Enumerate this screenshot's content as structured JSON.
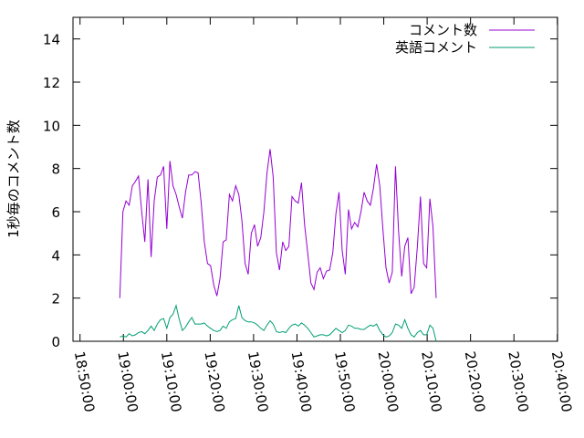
{
  "chart_data": {
    "type": "line",
    "title": "",
    "xlabel": "",
    "ylabel": "1秒毎のコメント数",
    "ylim": [
      0,
      15
    ],
    "y_ticks": [
      "0",
      "2",
      "4",
      "6",
      "8",
      "10",
      "12",
      "14"
    ],
    "x_ticks": [
      "18:50:00",
      "19:00:00",
      "19:10:00",
      "19:20:00",
      "19:30:00",
      "19:40:00",
      "19:50:00",
      "20:00:00",
      "20:10:00",
      "20:20:00",
      "20:30:00",
      "20:40:00"
    ],
    "x_unit": "minutes since 18:50:00",
    "xlim": [
      -1.62,
      110.05
    ],
    "grid": false,
    "legend_position": "top-right",
    "series": [
      {
        "name": "コメント数",
        "color": "#9400d3",
        "points": [
          [
            9.16,
            2.0
          ],
          [
            9.88,
            6.0
          ],
          [
            10.6,
            6.5
          ],
          [
            11.33,
            6.3
          ],
          [
            12.05,
            7.2
          ],
          [
            12.77,
            7.4
          ],
          [
            13.49,
            7.65
          ],
          [
            14.21,
            6.0
          ],
          [
            14.94,
            4.6
          ],
          [
            15.66,
            7.5
          ],
          [
            16.38,
            3.9
          ],
          [
            17.1,
            6.5
          ],
          [
            17.82,
            7.6
          ],
          [
            18.55,
            7.7
          ],
          [
            19.27,
            8.1
          ],
          [
            19.99,
            5.2
          ],
          [
            20.71,
            8.35
          ],
          [
            21.43,
            7.2
          ],
          [
            22.15,
            6.8
          ],
          [
            22.88,
            6.2
          ],
          [
            23.6,
            5.7
          ],
          [
            24.32,
            6.9
          ],
          [
            25.04,
            7.7
          ],
          [
            25.76,
            7.7
          ],
          [
            26.49,
            7.85
          ],
          [
            27.21,
            7.8
          ],
          [
            27.93,
            6.4
          ],
          [
            28.65,
            4.6
          ],
          [
            29.37,
            3.6
          ],
          [
            30.1,
            3.5
          ],
          [
            30.82,
            2.6
          ],
          [
            31.54,
            2.1
          ],
          [
            32.26,
            2.9
          ],
          [
            32.98,
            4.6
          ],
          [
            33.7,
            4.7
          ],
          [
            34.43,
            6.8
          ],
          [
            35.15,
            6.5
          ],
          [
            35.87,
            7.2
          ],
          [
            36.59,
            6.8
          ],
          [
            37.31,
            5.6
          ],
          [
            38.04,
            3.6
          ],
          [
            38.76,
            3.1
          ],
          [
            39.48,
            5.0
          ],
          [
            40.2,
            5.4
          ],
          [
            40.92,
            4.4
          ],
          [
            41.65,
            4.8
          ],
          [
            42.37,
            6.0
          ],
          [
            43.09,
            7.8
          ],
          [
            43.81,
            8.9
          ],
          [
            44.53,
            7.6
          ],
          [
            45.25,
            4.1
          ],
          [
            45.98,
            3.3
          ],
          [
            46.7,
            4.6
          ],
          [
            47.42,
            4.2
          ],
          [
            48.14,
            4.4
          ],
          [
            48.86,
            6.7
          ],
          [
            49.59,
            6.5
          ],
          [
            50.31,
            6.4
          ],
          [
            51.03,
            7.35
          ],
          [
            51.75,
            5.4
          ],
          [
            52.47,
            4.1
          ],
          [
            53.2,
            2.7
          ],
          [
            53.92,
            2.4
          ],
          [
            54.64,
            3.2
          ],
          [
            55.36,
            3.4
          ],
          [
            56.08,
            2.9
          ],
          [
            56.8,
            3.25
          ],
          [
            57.53,
            3.3
          ],
          [
            58.25,
            4.1
          ],
          [
            58.97,
            5.9
          ],
          [
            59.69,
            6.9
          ],
          [
            60.41,
            4.2
          ],
          [
            61.14,
            3.1
          ],
          [
            61.86,
            6.1
          ],
          [
            62.58,
            5.2
          ],
          [
            63.3,
            5.5
          ],
          [
            64.02,
            5.3
          ],
          [
            64.75,
            6.0
          ],
          [
            65.47,
            6.9
          ],
          [
            66.19,
            6.5
          ],
          [
            66.91,
            6.3
          ],
          [
            67.63,
            7.1
          ],
          [
            68.35,
            8.2
          ],
          [
            69.08,
            7.2
          ],
          [
            69.8,
            5.2
          ],
          [
            70.52,
            3.4
          ],
          [
            71.24,
            2.7
          ],
          [
            71.96,
            3.2
          ],
          [
            72.69,
            8.1
          ],
          [
            73.41,
            5.1
          ],
          [
            74.13,
            3.0
          ],
          [
            74.85,
            4.4
          ],
          [
            75.57,
            4.8
          ],
          [
            76.3,
            2.2
          ],
          [
            77.02,
            2.5
          ],
          [
            77.74,
            4.4
          ],
          [
            78.46,
            6.7
          ],
          [
            79.18,
            3.6
          ],
          [
            79.9,
            3.4
          ],
          [
            80.63,
            6.6
          ],
          [
            81.35,
            5.3
          ],
          [
            82.07,
            2.0
          ]
        ]
      },
      {
        "name": "英語コメント",
        "color": "#009e73",
        "points": [
          [
            9.16,
            0.2
          ],
          [
            9.88,
            0.25
          ],
          [
            10.6,
            0.2
          ],
          [
            11.33,
            0.35
          ],
          [
            12.05,
            0.25
          ],
          [
            12.77,
            0.3
          ],
          [
            13.49,
            0.4
          ],
          [
            14.21,
            0.45
          ],
          [
            14.94,
            0.35
          ],
          [
            15.66,
            0.5
          ],
          [
            16.38,
            0.7
          ],
          [
            17.1,
            0.5
          ],
          [
            17.82,
            0.8
          ],
          [
            18.55,
            1.0
          ],
          [
            19.27,
            1.05
          ],
          [
            19.99,
            0.6
          ],
          [
            20.71,
            1.1
          ],
          [
            21.43,
            1.25
          ],
          [
            22.15,
            1.65
          ],
          [
            22.88,
            1.0
          ],
          [
            23.6,
            0.5
          ],
          [
            24.32,
            0.65
          ],
          [
            25.04,
            0.9
          ],
          [
            25.76,
            1.1
          ],
          [
            26.49,
            0.8
          ],
          [
            27.21,
            0.8
          ],
          [
            27.93,
            0.8
          ],
          [
            28.65,
            0.85
          ],
          [
            29.37,
            0.7
          ],
          [
            30.1,
            0.6
          ],
          [
            30.82,
            0.5
          ],
          [
            31.54,
            0.45
          ],
          [
            32.26,
            0.5
          ],
          [
            32.98,
            0.7
          ],
          [
            33.7,
            0.6
          ],
          [
            34.43,
            0.9
          ],
          [
            35.15,
            1.0
          ],
          [
            35.87,
            1.05
          ],
          [
            36.59,
            1.65
          ],
          [
            37.31,
            1.1
          ],
          [
            38.04,
            0.95
          ],
          [
            38.76,
            0.9
          ],
          [
            39.48,
            0.9
          ],
          [
            40.2,
            0.85
          ],
          [
            40.92,
            0.75
          ],
          [
            41.65,
            0.6
          ],
          [
            42.37,
            0.5
          ],
          [
            43.09,
            0.75
          ],
          [
            43.81,
            0.95
          ],
          [
            44.53,
            0.8
          ],
          [
            45.25,
            0.45
          ],
          [
            45.98,
            0.4
          ],
          [
            46.7,
            0.45
          ],
          [
            47.42,
            0.4
          ],
          [
            48.14,
            0.6
          ],
          [
            48.86,
            0.75
          ],
          [
            49.59,
            0.8
          ],
          [
            50.31,
            0.7
          ],
          [
            51.03,
            0.85
          ],
          [
            51.75,
            0.75
          ],
          [
            52.47,
            0.6
          ],
          [
            53.2,
            0.4
          ],
          [
            53.92,
            0.2
          ],
          [
            54.64,
            0.25
          ],
          [
            55.36,
            0.3
          ],
          [
            56.08,
            0.3
          ],
          [
            56.8,
            0.25
          ],
          [
            57.53,
            0.3
          ],
          [
            58.25,
            0.45
          ],
          [
            58.97,
            0.6
          ],
          [
            59.69,
            0.5
          ],
          [
            60.41,
            0.4
          ],
          [
            61.14,
            0.5
          ],
          [
            61.86,
            0.75
          ],
          [
            62.58,
            0.7
          ],
          [
            63.3,
            0.6
          ],
          [
            64.02,
            0.6
          ],
          [
            64.75,
            0.55
          ],
          [
            65.47,
            0.55
          ],
          [
            66.19,
            0.65
          ],
          [
            66.91,
            0.75
          ],
          [
            67.63,
            0.7
          ],
          [
            68.35,
            0.8
          ],
          [
            69.08,
            0.5
          ],
          [
            69.8,
            0.3
          ],
          [
            70.52,
            0.2
          ],
          [
            71.24,
            0.25
          ],
          [
            71.96,
            0.4
          ],
          [
            72.69,
            0.8
          ],
          [
            73.41,
            0.75
          ],
          [
            74.13,
            0.6
          ],
          [
            74.85,
            1.0
          ],
          [
            75.57,
            0.6
          ],
          [
            76.3,
            0.3
          ],
          [
            77.02,
            0.2
          ],
          [
            77.74,
            0.4
          ],
          [
            78.46,
            0.5
          ],
          [
            79.18,
            0.3
          ],
          [
            79.9,
            0.3
          ],
          [
            80.63,
            0.75
          ],
          [
            81.35,
            0.6
          ],
          [
            82.07,
            0.0
          ]
        ]
      }
    ]
  }
}
